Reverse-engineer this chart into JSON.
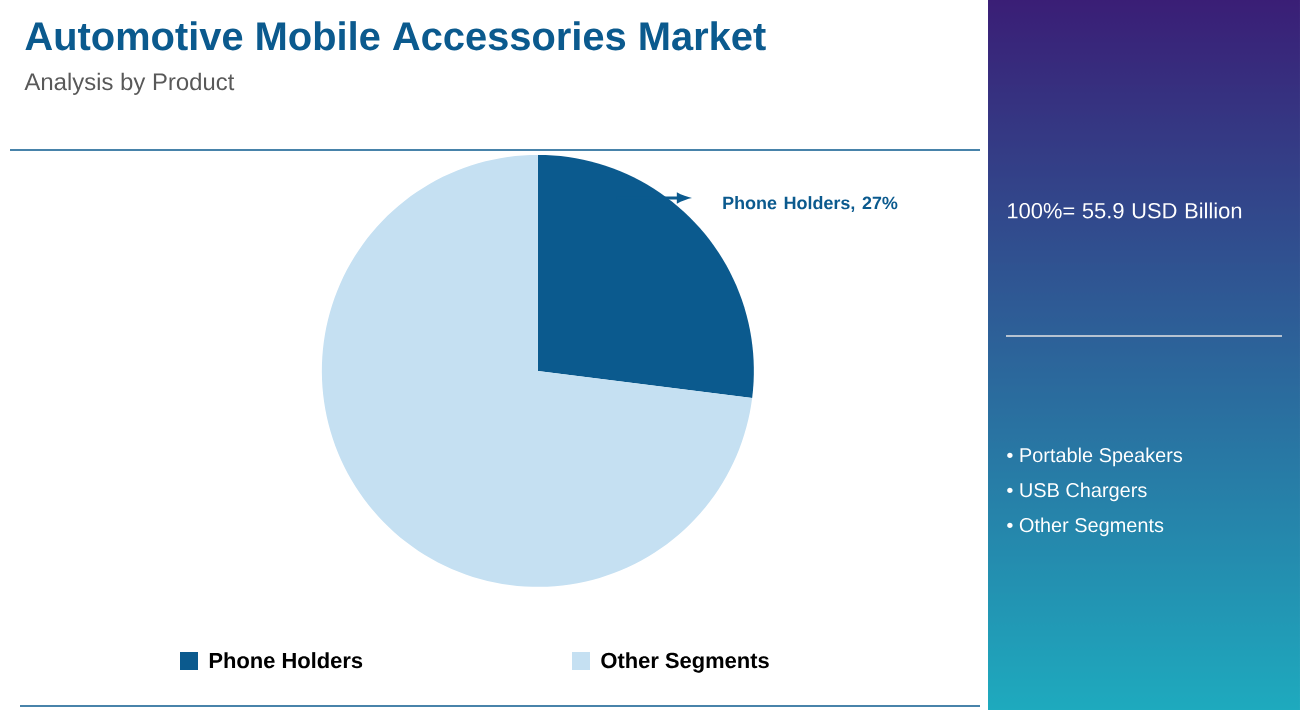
{
  "chart_data": {
    "type": "pie",
    "title": "Automotive Mobile Accessories Market",
    "subtitle": "Analysis by Product",
    "categories": [
      "Phone Holders",
      "Other Segments"
    ],
    "values": [
      27,
      73
    ],
    "colors": [
      "#0b5a8e",
      "#c5e0f2"
    ],
    "legend": "bottom",
    "annotations": [
      {
        "text": "Phone Holders, 27%"
      },
      "100%= 55.9 USD Billion",
      "• Portable Speakers",
      "• USB Chargers",
      "• Other Segments"
    ]
  }
}
